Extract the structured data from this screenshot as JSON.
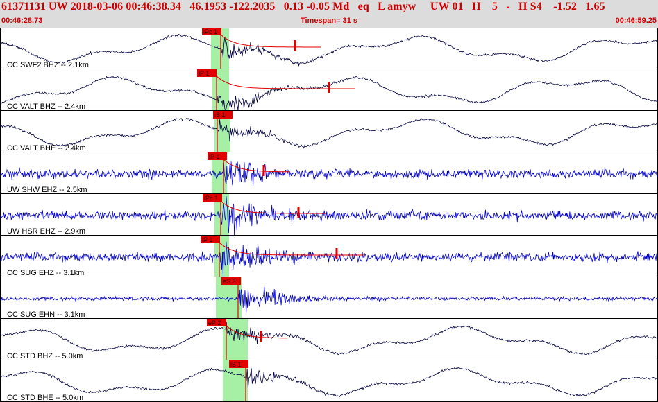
{
  "header": {
    "event_line": "61371131 UW 2018-03-06 00:46:38.34   46.1953 -122.2035   0.13 -0.05 Md   eq   L amyw     UW 01   H    5   -   H S4    -1.52   1.65",
    "start_time": "00:46:28.73",
    "timespan": "Timespan=  31 s",
    "end_time": "00:46:59.25"
  },
  "colors": {
    "header_bg": "#dcdcdc",
    "header_text": "#cc0000",
    "pick": "#e00000",
    "pick_window": "#a6f0a6",
    "broadband_trace": "#000040",
    "short_period_trace": "#0000cc",
    "divider": "#000000"
  },
  "traces": [
    {
      "label": "CC SWF2 BHZ -- 2.1km",
      "pick": "iPc 1",
      "color": "dark",
      "style": "slow"
    },
    {
      "label": "CC VALT BHZ -- 2.4km",
      "pick": "iP 1",
      "color": "dark",
      "style": "slow"
    },
    {
      "label": "CC VALT BHE -- 2.4km",
      "pick": "iS 1",
      "color": "dark",
      "style": "slow"
    },
    {
      "label": "UW SHW EHZ -- 2.5km",
      "pick": "iP 1",
      "color": "blue",
      "style": "noisy"
    },
    {
      "label": "UW HSR EHZ -- 2.9km",
      "pick": "iPc 1",
      "color": "blue",
      "style": "noisy"
    },
    {
      "label": "CC SUG EHZ -- 3.1km",
      "pick": "iP 1",
      "color": "blue",
      "style": "noisy"
    },
    {
      "label": "CC SUG EHN -- 3.1km",
      "pick": "eS 2",
      "color": "blue",
      "style": "quiet"
    },
    {
      "label": "CC STD BHZ -- 5.0km",
      "pick": "eP 2",
      "color": "dark",
      "style": "slow"
    },
    {
      "label": "CC STD BHE -- 5.0km",
      "pick": "iS 1",
      "color": "dark",
      "style": "slow"
    }
  ]
}
